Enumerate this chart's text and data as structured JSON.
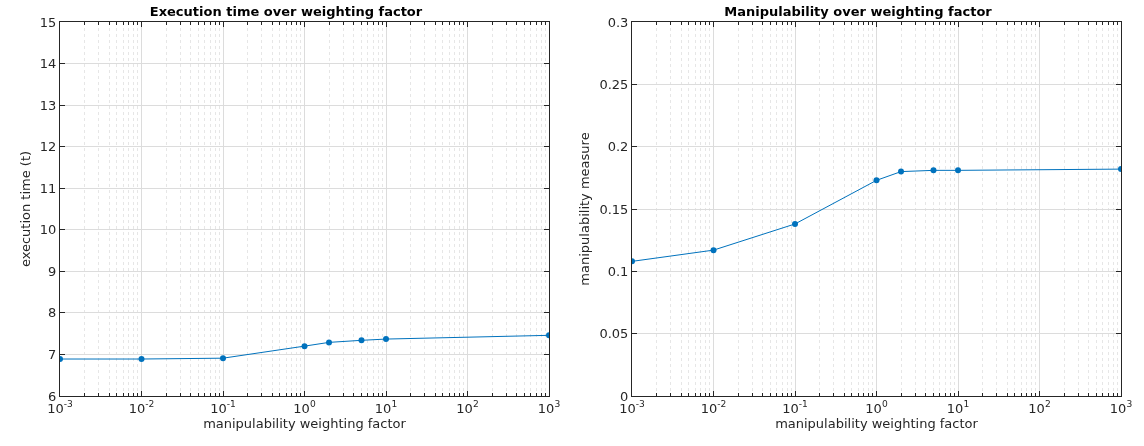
{
  "chart_data": [
    {
      "type": "line",
      "title": "Execution time over weighting factor",
      "xlabel": "manipulability weighting factor",
      "ylabel": "execution time (t)",
      "log": "x",
      "grid": true,
      "marker": "circle",
      "line_style": "solid",
      "x": [
        0.001,
        0.01,
        0.1,
        1,
        2,
        5,
        10,
        1000
      ],
      "series": [
        {
          "color": "#0072bd",
          "values": [
            6.89,
            6.89,
            6.91,
            7.2,
            7.29,
            7.34,
            7.37,
            7.46
          ]
        }
      ],
      "xlim": [
        0.001,
        1000
      ],
      "xticks": [
        {
          "value": 0.001,
          "label": "10$^{-3}$"
        },
        {
          "value": 0.01,
          "label": "10$^{-2}$"
        },
        {
          "value": 0.1,
          "label": "10$^{-1}$"
        },
        {
          "value": 1,
          "label": "10$^{0}$"
        },
        {
          "value": 10,
          "label": "10$^{1}$"
        },
        {
          "value": 100,
          "label": "10$^{2}$"
        },
        {
          "value": 1000,
          "label": "10$^{3}$"
        }
      ],
      "ylim": [
        6,
        15
      ],
      "yticks": [
        6,
        7,
        8,
        9,
        10,
        11,
        12,
        13,
        14,
        15
      ]
    },
    {
      "type": "line",
      "title": "Manipulability over weighting factor",
      "xlabel": "manipulability weighting factor",
      "ylabel": "manipulability measure",
      "log": "x",
      "grid": true,
      "marker": "circle",
      "line_style": "solid",
      "x": [
        0.001,
        0.01,
        0.1,
        1,
        2,
        5,
        10,
        1000
      ],
      "series": [
        {
          "color": "#0072bd",
          "values": [
            0.108,
            0.117,
            0.138,
            0.173,
            0.18,
            0.181,
            0.181,
            0.182
          ]
        }
      ],
      "xlim": [
        0.001,
        1000
      ],
      "xticks": [
        {
          "value": 0.001,
          "label": "10$^{-3}$"
        },
        {
          "value": 0.01,
          "label": "10$^{-2}$"
        },
        {
          "value": 0.1,
          "label": "10$^{-1}$"
        },
        {
          "value": 1,
          "label": "10$^{0}$"
        },
        {
          "value": 10,
          "label": "10$^{1}$"
        },
        {
          "value": 100,
          "label": "10$^{2}$"
        },
        {
          "value": 1000,
          "label": "10$^{3}$"
        }
      ],
      "ylim": [
        0,
        0.3
      ],
      "yticks": [
        0,
        0.05,
        0.1,
        0.15,
        0.2,
        0.25,
        0.3
      ]
    }
  ]
}
